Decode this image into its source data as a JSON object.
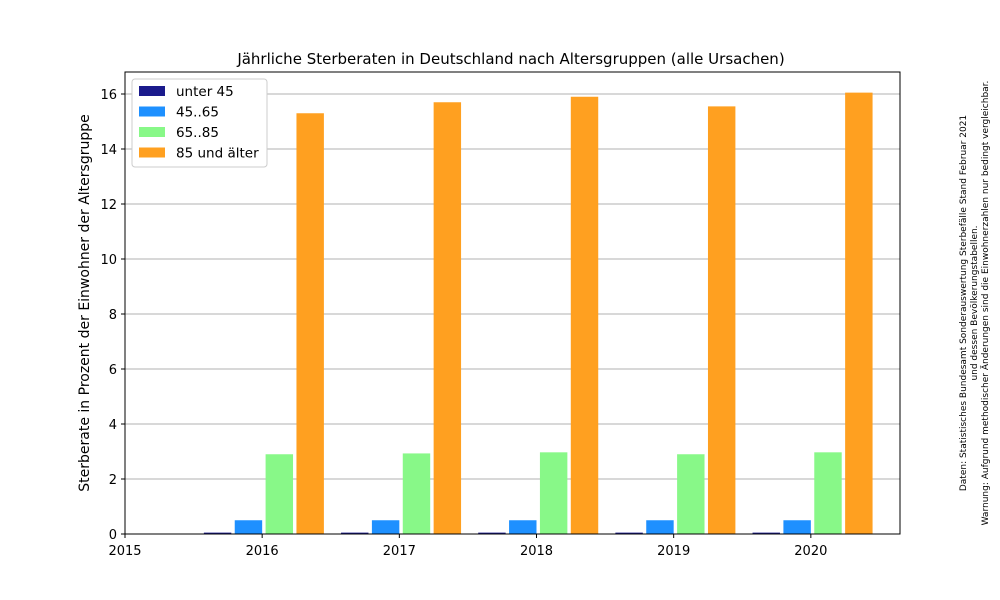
{
  "chart_data": {
    "type": "bar",
    "title": "Jährliche Sterberaten in Deutschland nach Altersgruppen (alle Ursachen)",
    "ylabel": "Sterberate in Prozent der Einwohner der Altersgruppe",
    "xlabel": "",
    "categories": [
      "2016",
      "2017",
      "2018",
      "2019",
      "2020"
    ],
    "x_ticks": [
      "2015",
      "2016",
      "2017",
      "2018",
      "2019",
      "2020"
    ],
    "xlim": [
      2015,
      2020.65
    ],
    "ylim": [
      0,
      16.8
    ],
    "y_ticks": [
      "0",
      "2",
      "4",
      "6",
      "8",
      "10",
      "12",
      "14",
      "16"
    ],
    "grid": "horizontal",
    "legend_position": "top-left",
    "series": [
      {
        "name": "unter 45",
        "color": "#1a1a8c",
        "values": [
          0.05,
          0.05,
          0.05,
          0.05,
          0.05
        ]
      },
      {
        "name": "45..65",
        "color": "#1e90ff",
        "values": [
          0.5,
          0.5,
          0.5,
          0.5,
          0.5
        ]
      },
      {
        "name": "65..85",
        "color": "#88f888",
        "values": [
          2.9,
          2.93,
          2.97,
          2.9,
          2.97
        ]
      },
      {
        "name": "85 und älter",
        "color": "#ffa020",
        "values": [
          15.3,
          15.7,
          15.9,
          15.55,
          16.05
        ]
      }
    ]
  },
  "notes": [
    "Daten: Statistisches Bundesamt Sonderauswertung Sterbefälle Stand Februar 2021",
    "und dessen Bevölkerungstabellen.",
    "Warnung: Aufgrund methodischer Änderungen sind die Einwohnerzahlen nur bedingt vergleichbar."
  ]
}
